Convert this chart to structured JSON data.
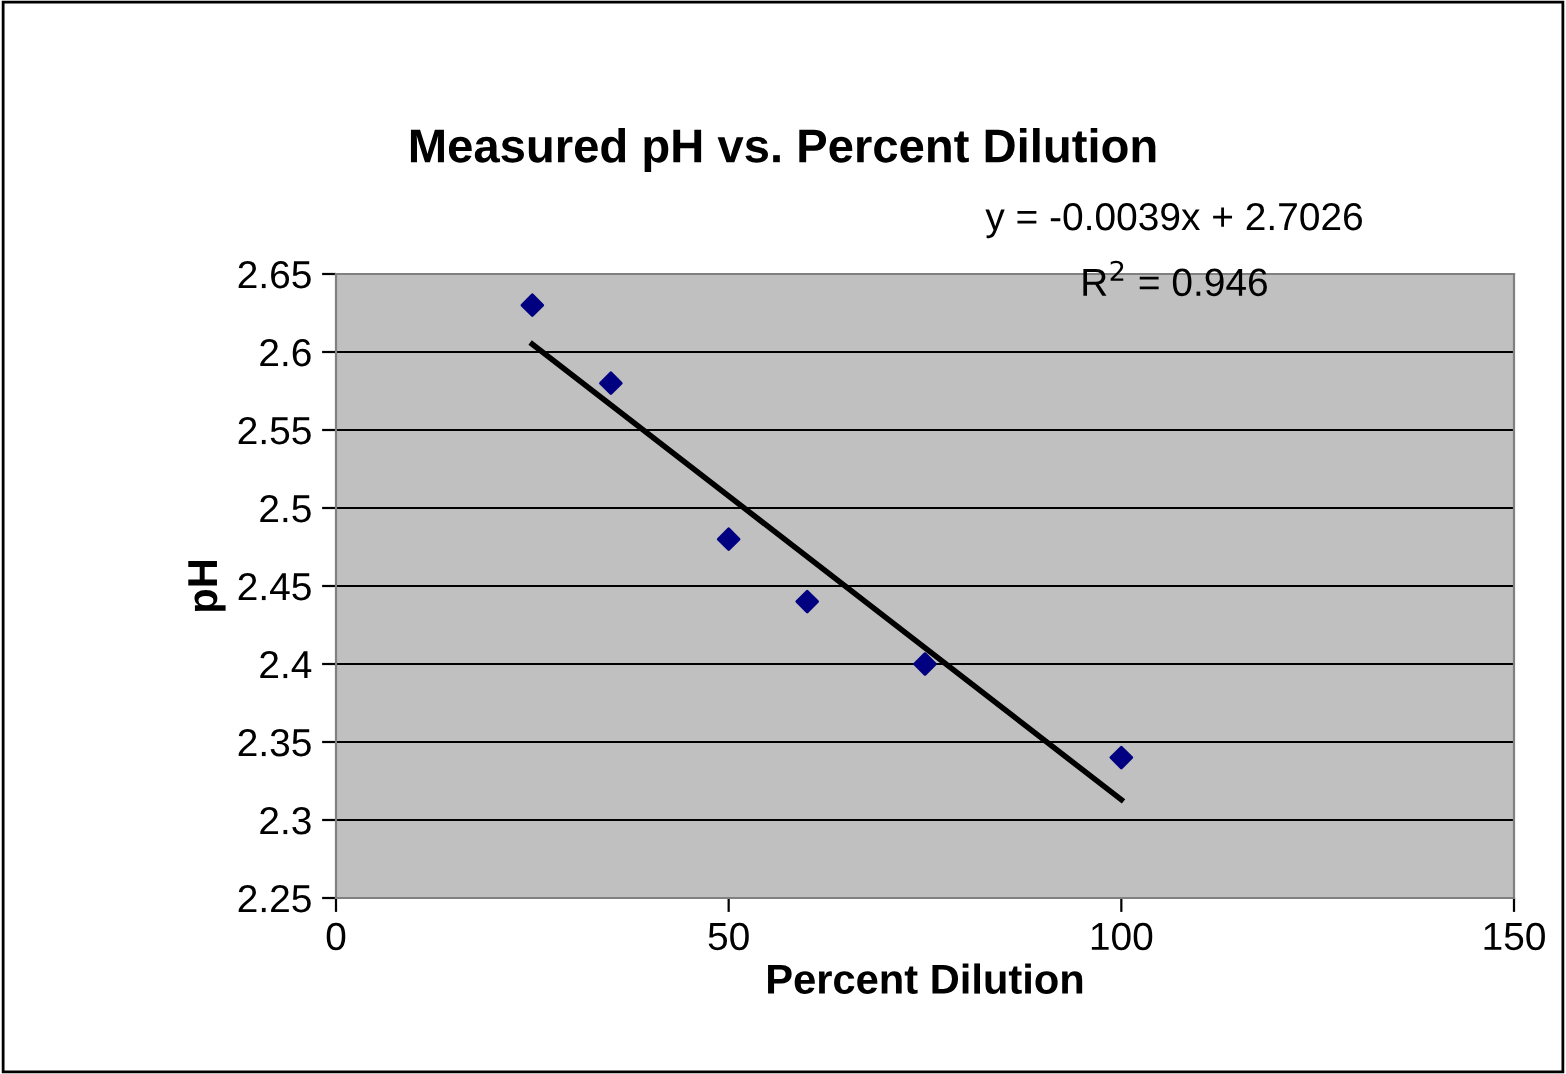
{
  "chart_data": {
    "type": "scatter",
    "title": "Measured pH vs. Percent Dilution",
    "xlabel": "Percent Dilution",
    "ylabel": "pH",
    "x": [
      25,
      35,
      50,
      60,
      75,
      100
    ],
    "series": [
      {
        "color": "#000080",
        "marker": "diamond",
        "values": [
          2.63,
          2.58,
          2.48,
          2.44,
          2.4,
          2.34
        ]
      },
      {
        "type": "line",
        "color": "#000000",
        "marker": "none",
        "line_style": "solid",
        "x": [
          25,
          100
        ],
        "values": [
          2.605,
          2.313
        ]
      }
    ],
    "annotations": [
      "y = -0.0039x + 2.7026",
      "R$^{2}$ = 0.946"
    ],
    "xlim": [
      0,
      150
    ],
    "xticks": [
      0,
      50,
      100,
      150
    ],
    "ylim": [
      2.25,
      2.65
    ],
    "yticks": [
      2.25,
      2.3,
      2.35,
      2.4,
      2.45,
      2.5,
      2.55,
      2.6,
      2.65
    ],
    "grid": "y",
    "legend": false
  }
}
